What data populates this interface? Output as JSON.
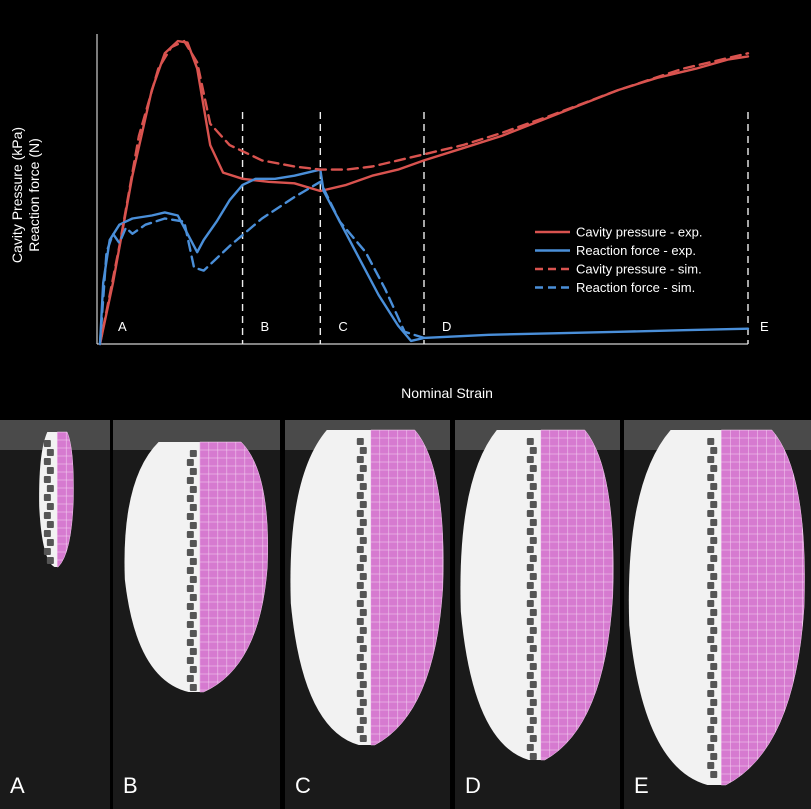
{
  "chart_data": {
    "type": "line",
    "xlabel": "Nominal Strain",
    "ylabel_lines": [
      "Cavity Pressure (kPa)",
      "Reaction force (N)"
    ],
    "xlim": [
      0,
      1
    ],
    "ylim": [
      0,
      1
    ],
    "phase_labels": [
      "A",
      "B",
      "C",
      "D",
      "E"
    ],
    "phase_boundaries": [
      0.0,
      0.22,
      0.34,
      0.5,
      1.0
    ],
    "legend_position": "right",
    "series": [
      {
        "name": "Cavity pressure - exp.",
        "color": "#d9534f",
        "dash": "solid",
        "x": [
          0,
          0.02,
          0.05,
          0.08,
          0.1,
          0.12,
          0.135,
          0.15,
          0.17,
          0.19,
          0.22,
          0.26,
          0.3,
          0.34,
          0.38,
          0.42,
          0.46,
          0.5,
          0.56,
          0.62,
          0.68,
          0.74,
          0.8,
          0.86,
          0.92,
          0.97,
          1.0
        ],
        "y": [
          0,
          0.2,
          0.55,
          0.83,
          0.95,
          0.99,
          0.985,
          0.9,
          0.65,
          0.56,
          0.54,
          0.53,
          0.525,
          0.5,
          0.52,
          0.55,
          0.57,
          0.6,
          0.64,
          0.68,
          0.73,
          0.78,
          0.83,
          0.87,
          0.9,
          0.93,
          0.94
        ]
      },
      {
        "name": "Reaction force - exp.",
        "color": "#4a8fd9",
        "dash": "solid",
        "x": [
          0,
          0.005,
          0.015,
          0.03,
          0.05,
          0.08,
          0.1,
          0.12,
          0.135,
          0.15,
          0.16,
          0.18,
          0.2,
          0.22,
          0.24,
          0.27,
          0.3,
          0.34,
          0.345,
          0.37,
          0.4,
          0.43,
          0.46,
          0.48,
          0.5,
          0.6,
          0.7,
          0.8,
          0.9,
          1.0
        ],
        "y": [
          0,
          0.2,
          0.34,
          0.39,
          0.41,
          0.42,
          0.43,
          0.42,
          0.36,
          0.3,
          0.34,
          0.4,
          0.47,
          0.52,
          0.54,
          0.54,
          0.55,
          0.57,
          0.5,
          0.4,
          0.28,
          0.16,
          0.06,
          0.01,
          0.02,
          0.03,
          0.035,
          0.04,
          0.045,
          0.05
        ]
      },
      {
        "name": "Cavity pressure - sim.",
        "color": "#d9534f",
        "dash": "dashed",
        "x": [
          0,
          0.03,
          0.06,
          0.09,
          0.11,
          0.13,
          0.15,
          0.17,
          0.2,
          0.25,
          0.3,
          0.34,
          0.38,
          0.42,
          0.46,
          0.5,
          0.56,
          0.62,
          0.7,
          0.8,
          0.9,
          1.0
        ],
        "y": [
          0,
          0.32,
          0.68,
          0.9,
          0.97,
          0.99,
          0.92,
          0.72,
          0.65,
          0.6,
          0.58,
          0.57,
          0.57,
          0.58,
          0.6,
          0.62,
          0.65,
          0.69,
          0.75,
          0.83,
          0.9,
          0.95
        ]
      },
      {
        "name": "Reaction force - sim.",
        "color": "#4a8fd9",
        "dash": "dashed",
        "x": [
          0,
          0.01,
          0.02,
          0.03,
          0.04,
          0.05,
          0.07,
          0.1,
          0.13,
          0.145,
          0.16,
          0.2,
          0.25,
          0.3,
          0.34,
          0.37,
          0.41,
          0.44,
          0.47,
          0.5
        ],
        "y": [
          0,
          0.3,
          0.36,
          0.33,
          0.38,
          0.36,
          0.39,
          0.41,
          0.4,
          0.25,
          0.24,
          0.32,
          0.41,
          0.48,
          0.53,
          0.4,
          0.3,
          0.18,
          0.04,
          0.02
        ]
      }
    ]
  },
  "panels": {
    "labels": [
      "A",
      "B",
      "C",
      "D",
      "E"
    ],
    "photo_color": "#f2f2f2",
    "mesh_color": "#d67ad0"
  }
}
